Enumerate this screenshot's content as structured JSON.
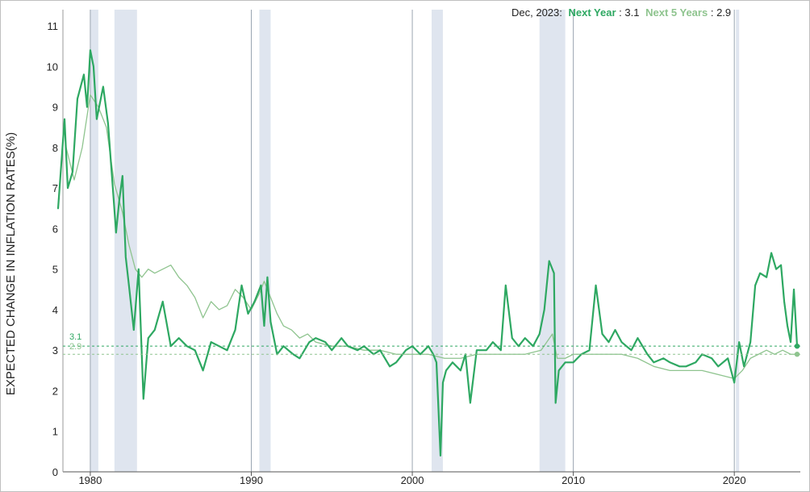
{
  "chart_data": {
    "type": "line",
    "ylabel": "EXPECTED CHANGE IN INFLATION RATES(%)",
    "xlim": [
      1978.3,
      2024.1
    ],
    "ylim": [
      0,
      11.4
    ],
    "y_ticks": [
      "0",
      "1",
      "2",
      "3",
      "4",
      "5",
      "6",
      "7",
      "8",
      "9",
      "10",
      "11"
    ],
    "x_ticks": [
      "1980",
      "1990",
      "2000",
      "2010",
      "2020"
    ],
    "legend": {
      "date": "Dec, 2023:",
      "next_year_label": "Next Year",
      "next_year_value": "3.1",
      "next_5_label": "Next 5 Years",
      "next_5_value": "2.9"
    },
    "endpoint_labels": {
      "next_year": "3.1",
      "next_5": "2.9"
    },
    "reference_lines": [
      3.1,
      2.9
    ],
    "colors": {
      "next_year": "#2ea862",
      "next_5": "#8fc48f",
      "recession": "#dfe5ef",
      "divider": "#9aa5b1"
    },
    "recessions": [
      [
        1980.0,
        1980.5
      ],
      [
        1981.5,
        1982.9
      ],
      [
        1990.5,
        1991.2
      ],
      [
        2001.2,
        2001.9
      ],
      [
        2007.9,
        2009.5
      ],
      [
        2020.1,
        2020.3
      ]
    ],
    "dividers": [
      1980.0,
      1990.0,
      2000.0,
      2010.0,
      2020.0
    ],
    "series": [
      {
        "name": "Next Year",
        "x": [
          1978.0,
          1978.4,
          1978.6,
          1978.9,
          1979.2,
          1979.6,
          1979.8,
          1980.0,
          1980.2,
          1980.4,
          1980.8,
          1981.1,
          1981.4,
          1981.6,
          1981.8,
          1982.0,
          1982.2,
          1982.4,
          1982.7,
          1983.0,
          1983.3,
          1983.6,
          1984.0,
          1984.5,
          1985.0,
          1985.5,
          1986.0,
          1986.5,
          1987.0,
          1987.5,
          1988.0,
          1988.5,
          1989.0,
          1989.4,
          1989.8,
          1990.2,
          1990.6,
          1990.8,
          1991.0,
          1991.2,
          1991.6,
          1992.0,
          1992.6,
          1993.0,
          1993.6,
          1994.0,
          1994.6,
          1995.0,
          1995.6,
          1996.0,
          1996.6,
          1997.0,
          1997.6,
          1998.0,
          1998.6,
          1999.0,
          1999.6,
          2000.0,
          2000.5,
          2001.0,
          2001.3,
          2001.5,
          2001.75,
          2001.9,
          2002.1,
          2002.5,
          2003.0,
          2003.3,
          2003.6,
          2004.0,
          2004.6,
          2005.0,
          2005.5,
          2005.8,
          2006.2,
          2006.6,
          2007.0,
          2007.5,
          2007.9,
          2008.2,
          2008.5,
          2008.8,
          2008.9,
          2009.1,
          2009.5,
          2010.0,
          2010.5,
          2011.0,
          2011.4,
          2011.8,
          2012.2,
          2012.6,
          2013.0,
          2013.6,
          2014.0,
          2014.6,
          2015.0,
          2015.6,
          2016.0,
          2016.6,
          2017.0,
          2017.6,
          2018.0,
          2018.6,
          2019.0,
          2019.6,
          2020.0,
          2020.3,
          2020.6,
          2021.0,
          2021.3,
          2021.6,
          2022.0,
          2022.3,
          2022.6,
          2022.9,
          2023.1,
          2023.3,
          2023.5,
          2023.7,
          2023.9
        ],
        "values": [
          6.5,
          8.7,
          7.0,
          7.4,
          9.2,
          9.8,
          9.0,
          10.4,
          10.0,
          8.7,
          9.5,
          8.6,
          7.0,
          5.9,
          6.7,
          7.3,
          5.3,
          4.6,
          3.5,
          5.0,
          1.8,
          3.3,
          3.5,
          4.2,
          3.1,
          3.3,
          3.1,
          3.0,
          2.5,
          3.2,
          3.1,
          3.0,
          3.5,
          4.6,
          3.9,
          4.2,
          4.6,
          3.6,
          4.8,
          3.7,
          2.9,
          3.1,
          2.9,
          2.8,
          3.2,
          3.3,
          3.2,
          3.0,
          3.3,
          3.1,
          3.0,
          3.1,
          2.9,
          3.0,
          2.6,
          2.7,
          3.0,
          3.1,
          2.9,
          3.1,
          2.9,
          2.7,
          0.4,
          2.2,
          2.5,
          2.7,
          2.5,
          2.9,
          1.7,
          3.0,
          3.0,
          3.2,
          3.0,
          4.6,
          3.3,
          3.1,
          3.3,
          3.1,
          3.4,
          4.0,
          5.2,
          4.9,
          1.7,
          2.5,
          2.7,
          2.7,
          2.9,
          3.0,
          4.6,
          3.4,
          3.2,
          3.5,
          3.2,
          3.0,
          3.3,
          2.9,
          2.7,
          2.8,
          2.7,
          2.6,
          2.6,
          2.7,
          2.9,
          2.8,
          2.6,
          2.8,
          2.2,
          3.2,
          2.6,
          3.2,
          4.6,
          4.9,
          4.8,
          5.4,
          5.0,
          5.1,
          4.2,
          3.6,
          3.2,
          4.5,
          3.1
        ]
      },
      {
        "name": "Next 5 Years",
        "x": [
          1978.5,
          1979.0,
          1979.5,
          1980.0,
          1980.5,
          1981.0,
          1981.5,
          1982.0,
          1982.4,
          1982.8,
          1983.2,
          1983.6,
          1984.0,
          1984.5,
          1985.0,
          1985.5,
          1986.0,
          1986.5,
          1987.0,
          1987.5,
          1988.0,
          1988.5,
          1989.0,
          1989.5,
          1990.0,
          1990.5,
          1990.8,
          1991.2,
          1991.6,
          1992.0,
          1992.5,
          1993.0,
          1993.5,
          1994.0,
          1995.0,
          1996.0,
          1997.0,
          1998.0,
          1999.0,
          2000.0,
          2001.0,
          2002.0,
          2003.0,
          2004.0,
          2005.0,
          2006.0,
          2007.0,
          2008.0,
          2008.7,
          2009.0,
          2009.5,
          2010.0,
          2011.0,
          2012.0,
          2013.0,
          2014.0,
          2015.0,
          2016.0,
          2017.0,
          2018.0,
          2019.0,
          2020.0,
          2020.5,
          2021.0,
          2021.5,
          2022.0,
          2022.5,
          2023.0,
          2023.5,
          2023.9
        ],
        "values": [
          8.0,
          7.2,
          8.0,
          9.3,
          9.0,
          8.5,
          7.1,
          6.4,
          5.6,
          5.0,
          4.8,
          5.0,
          4.9,
          5.0,
          5.1,
          4.8,
          4.6,
          4.3,
          3.8,
          4.2,
          4.0,
          4.1,
          4.5,
          4.3,
          4.0,
          4.4,
          4.7,
          4.3,
          3.9,
          3.6,
          3.5,
          3.3,
          3.4,
          3.2,
          3.1,
          3.1,
          3.0,
          3.0,
          2.9,
          2.9,
          2.9,
          2.8,
          2.8,
          2.9,
          2.9,
          2.9,
          2.9,
          3.0,
          3.4,
          2.8,
          2.8,
          2.9,
          2.9,
          2.9,
          2.9,
          2.8,
          2.6,
          2.5,
          2.5,
          2.5,
          2.4,
          2.3,
          2.5,
          2.8,
          2.9,
          3.0,
          2.9,
          3.0,
          2.9,
          2.9
        ]
      }
    ]
  }
}
